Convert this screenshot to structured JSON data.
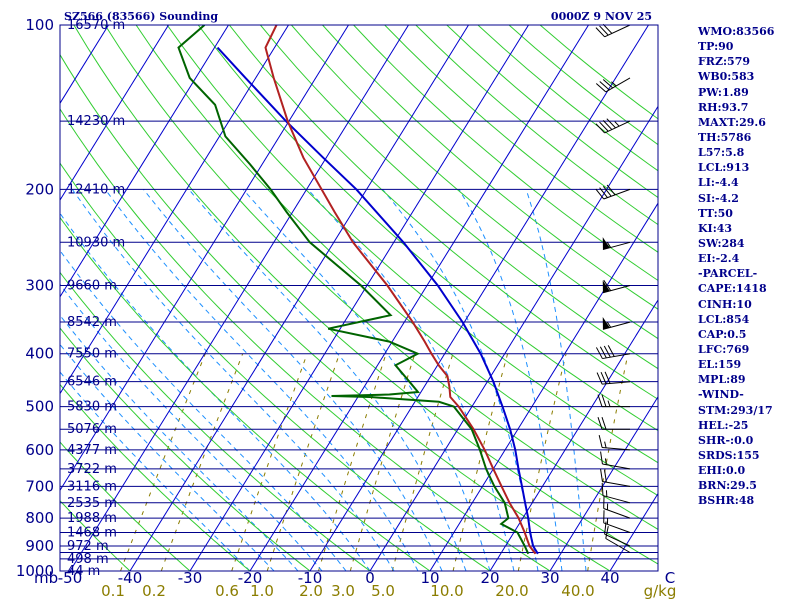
{
  "header": {
    "station": "SZ566 (83566) Sounding",
    "time": "0000Z  9 NOV 25"
  },
  "stats": [
    "WMO:83566",
    "TP:90",
    "FRZ:579",
    "WB0:583",
    "PW:1.89",
    "RH:93.7",
    "MAXT:29.6",
    "TH:5786",
    "L57:5.8",
    "LCL:913",
    "LI:-4.4",
    "SI:-4.2",
    "TT:50",
    "KI:43",
    "SW:284",
    "EI:-2.4",
    "-PARCEL-",
    "CAPE:1418",
    "CINH:10",
    "LCL:854",
    "CAP:0.5",
    "LFC:769",
    "EL:159",
    "MPL:89",
    "-WIND-",
    "STM:293/17",
    "HEL:-25",
    "SHR-:0.0",
    "SRDS:155",
    "EHI:0.0",
    "BRN:29.5",
    "BSHR:48"
  ],
  "colors": {
    "frame": "#00008b",
    "isobar": "#00008b",
    "isotherm": "#0000cd",
    "dry_adiabat": "#32cd32",
    "moist_adiabat": "#1e90ff",
    "mixing_ratio": "#8b7d00",
    "temperature": "#b22222",
    "dewpoint": "#006400",
    "parcel": "#0000cd",
    "wind": "#000000"
  },
  "chart_data": {
    "type": "skew-t",
    "title": "SZ566 (83566) Sounding",
    "pressure_range": [
      1000,
      100
    ],
    "temperature_range": [
      -50,
      50
    ],
    "pressure_labels": [
      {
        "p": 100,
        "text": "100"
      },
      {
        "p": 200,
        "text": "200"
      },
      {
        "p": 300,
        "text": "300"
      },
      {
        "p": 400,
        "text": "400"
      },
      {
        "p": 500,
        "text": "500"
      },
      {
        "p": 600,
        "text": "600"
      },
      {
        "p": 700,
        "text": "700"
      },
      {
        "p": 800,
        "text": "800"
      },
      {
        "p": 900,
        "text": "900"
      },
      {
        "p": 1000,
        "text": "1000"
      }
    ],
    "isobars": [
      100,
      150,
      200,
      250,
      300,
      350,
      400,
      450,
      500,
      550,
      600,
      650,
      700,
      750,
      800,
      850,
      900,
      925,
      950,
      1000
    ],
    "heights": [
      {
        "p": 100,
        "text": "16570 m"
      },
      {
        "p": 150,
        "text": "14230 m"
      },
      {
        "p": 200,
        "text": "12410 m"
      },
      {
        "p": 250,
        "text": "10930 m"
      },
      {
        "p": 300,
        "text": "9660 m"
      },
      {
        "p": 350,
        "text": "8542 m"
      },
      {
        "p": 400,
        "text": "7550 m"
      },
      {
        "p": 450,
        "text": "6546 m"
      },
      {
        "p": 500,
        "text": "5830 m"
      },
      {
        "p": 550,
        "text": "5076 m"
      },
      {
        "p": 600,
        "text": "4377 m"
      },
      {
        "p": 650,
        "text": "3722 m"
      },
      {
        "p": 700,
        "text": "3116 m"
      },
      {
        "p": 750,
        "text": "2535 m"
      },
      {
        "p": 800,
        "text": "1988 m"
      },
      {
        "p": 850,
        "text": "1468 m"
      },
      {
        "p": 900,
        "text": "972 m"
      },
      {
        "p": 950,
        "text": "498 m"
      },
      {
        "p": 1000,
        "text": "44 m"
      }
    ],
    "temp_ticks": [
      {
        "t": -50,
        "text": "-50"
      },
      {
        "t": -40,
        "text": "-40"
      },
      {
        "t": -30,
        "text": "-30"
      },
      {
        "t": -20,
        "text": "-20"
      },
      {
        "t": -10,
        "text": "-10"
      },
      {
        "t": 0,
        "text": "0"
      },
      {
        "t": 10,
        "text": "10"
      },
      {
        "t": 20,
        "text": "20"
      },
      {
        "t": 30,
        "text": "30"
      },
      {
        "t": 40,
        "text": "40"
      },
      {
        "t": 50,
        "text": "C"
      }
    ],
    "x_unit_prefix": "mb",
    "mixing_ratio_labels": [
      "0.1",
      "0.2",
      "0.6",
      "1.0",
      "2.0",
      "3.0",
      "5.0",
      "10.0",
      "20.0",
      "40.0",
      "g/kg"
    ],
    "mixing_ratio_values": [
      0.1,
      0.2,
      0.6,
      1.0,
      2.0,
      3.0,
      5.0,
      10.0,
      20.0,
      40.0
    ],
    "temperature_profile": [
      {
        "p": 930,
        "t": 25.8
      },
      {
        "p": 900,
        "t": 24.0
      },
      {
        "p": 850,
        "t": 21.8
      },
      {
        "p": 800,
        "t": 19.3
      },
      {
        "p": 750,
        "t": 16.2
      },
      {
        "p": 700,
        "t": 13.2
      },
      {
        "p": 650,
        "t": 10.0
      },
      {
        "p": 600,
        "t": 6.6
      },
      {
        "p": 550,
        "t": 2.6
      },
      {
        "p": 500,
        "t": -2.2
      },
      {
        "p": 480,
        "t": -4.6
      },
      {
        "p": 460,
        "t": -5.8
      },
      {
        "p": 440,
        "t": -7.2
      },
      {
        "p": 420,
        "t": -9.8
      },
      {
        "p": 400,
        "t": -12.2
      },
      {
        "p": 380,
        "t": -14.6
      },
      {
        "p": 350,
        "t": -18.6
      },
      {
        "p": 300,
        "t": -26.6
      },
      {
        "p": 250,
        "t": -36.8
      },
      {
        "p": 220,
        "t": -43.0
      },
      {
        "p": 200,
        "t": -47.5
      },
      {
        "p": 175,
        "t": -53.8
      },
      {
        "p": 150,
        "t": -60.2
      },
      {
        "p": 125,
        "t": -67.0
      },
      {
        "p": 110,
        "t": -71.5
      },
      {
        "p": 100,
        "t": -72.0
      }
    ],
    "dewpoint_profile": [
      {
        "p": 930,
        "t": 24.6
      },
      {
        "p": 900,
        "t": 23.2
      },
      {
        "p": 850,
        "t": 20.6
      },
      {
        "p": 820,
        "t": 17.0
      },
      {
        "p": 800,
        "t": 17.6
      },
      {
        "p": 750,
        "t": 15.4
      },
      {
        "p": 700,
        "t": 12.0
      },
      {
        "p": 650,
        "t": 8.8
      },
      {
        "p": 600,
        "t": 5.8
      },
      {
        "p": 550,
        "t": 2.3
      },
      {
        "p": 500,
        "t": -3.0
      },
      {
        "p": 490,
        "t": -6.0
      },
      {
        "p": 480,
        "t": -18.0
      },
      {
        "p": 478,
        "t": -24.5
      },
      {
        "p": 475,
        "t": -15.0
      },
      {
        "p": 470,
        "t": -10.5
      },
      {
        "p": 450,
        "t": -13.0
      },
      {
        "p": 420,
        "t": -17.0
      },
      {
        "p": 400,
        "t": -14.5
      },
      {
        "p": 380,
        "t": -20.5
      },
      {
        "p": 360,
        "t": -32.0
      },
      {
        "p": 340,
        "t": -23.0
      },
      {
        "p": 300,
        "t": -31.0
      },
      {
        "p": 250,
        "t": -44.0
      },
      {
        "p": 220,
        "t": -51.0
      },
      {
        "p": 200,
        "t": -56.0
      },
      {
        "p": 180,
        "t": -62.0
      },
      {
        "p": 160,
        "t": -69.0
      },
      {
        "p": 140,
        "t": -74.0
      },
      {
        "p": 125,
        "t": -81.0
      },
      {
        "p": 110,
        "t": -86.0
      },
      {
        "p": 100,
        "t": -84.0
      }
    ],
    "parcel_profile": [
      {
        "p": 930,
        "t": 26.2
      },
      {
        "p": 900,
        "t": 24.6
      },
      {
        "p": 850,
        "t": 22.7
      },
      {
        "p": 800,
        "t": 20.9
      },
      {
        "p": 750,
        "t": 18.8
      },
      {
        "p": 700,
        "t": 16.6
      },
      {
        "p": 650,
        "t": 14.2
      },
      {
        "p": 600,
        "t": 11.7
      },
      {
        "p": 550,
        "t": 8.7
      },
      {
        "p": 500,
        "t": 5.1
      },
      {
        "p": 450,
        "t": 1.0
      },
      {
        "p": 400,
        "t": -4.0
      },
      {
        "p": 350,
        "t": -10.3
      },
      {
        "p": 300,
        "t": -18.2
      },
      {
        "p": 250,
        "t": -28.4
      },
      {
        "p": 200,
        "t": -41.7
      },
      {
        "p": 175,
        "t": -50.5
      },
      {
        "p": 150,
        "t": -60.5
      },
      {
        "p": 125,
        "t": -71.7
      },
      {
        "p": 110,
        "t": -79.5
      }
    ],
    "winds": [
      {
        "p": 925,
        "dir": 300,
        "kt": 10
      },
      {
        "p": 900,
        "dir": 295,
        "kt": 12
      },
      {
        "p": 850,
        "dir": 290,
        "kt": 15
      },
      {
        "p": 800,
        "dir": 290,
        "kt": 15
      },
      {
        "p": 750,
        "dir": 285,
        "kt": 15
      },
      {
        "p": 700,
        "dir": 280,
        "kt": 20
      },
      {
        "p": 650,
        "dir": 280,
        "kt": 15
      },
      {
        "p": 600,
        "dir": 275,
        "kt": 15
      },
      {
        "p": 550,
        "dir": 270,
        "kt": 20
      },
      {
        "p": 500,
        "dir": 270,
        "kt": 25
      },
      {
        "p": 450,
        "dir": 265,
        "kt": 30
      },
      {
        "p": 400,
        "dir": 260,
        "kt": 40
      },
      {
        "p": 350,
        "dir": 255,
        "kt": 55
      },
      {
        "p": 300,
        "dir": 255,
        "kt": 60
      },
      {
        "p": 250,
        "dir": 255,
        "kt": 55
      },
      {
        "p": 200,
        "dir": 250,
        "kt": 40
      },
      {
        "p": 150,
        "dir": 245,
        "kt": 45
      },
      {
        "p": 125,
        "dir": 240,
        "kt": 35
      },
      {
        "p": 100,
        "dir": 245,
        "kt": 30
      }
    ]
  }
}
